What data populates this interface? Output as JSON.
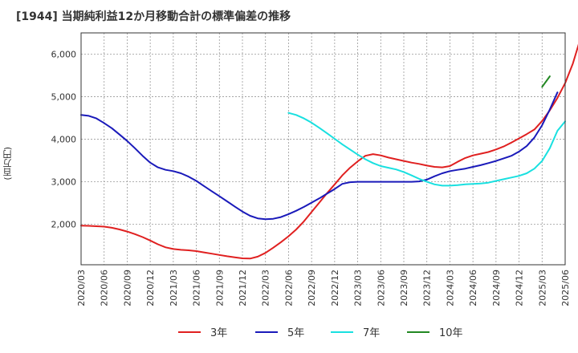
{
  "chart_data": {
    "type": "line",
    "title": "[1944]  当期純利益12か月移動合計の標準偏差の推移",
    "ylabel": "(百万円)",
    "xlabel": "",
    "ylim": [
      1050,
      6500
    ],
    "yticks": [
      2000,
      3000,
      4000,
      5000,
      6000
    ],
    "ytick_labels": [
      "2,000",
      "3,000",
      "4,000",
      "5,000",
      "6,000"
    ],
    "xticks": [
      "2020/03",
      "2020/06",
      "2020/09",
      "2020/12",
      "2021/03",
      "2021/06",
      "2021/09",
      "2021/12",
      "2022/03",
      "2022/06",
      "2022/09",
      "2022/12",
      "2023/03",
      "2023/06",
      "2023/09",
      "2023/12",
      "2024/03",
      "2024/06",
      "2024/09",
      "2024/12",
      "2025/03",
      "2025/06"
    ],
    "grid": true,
    "legend_position": "bottom",
    "x_start": "2020/03",
    "series": [
      {
        "name": "3年",
        "color": "#e02020",
        "start_index": 0,
        "values": [
          1970,
          1965,
          1955,
          1945,
          1920,
          1880,
          1830,
          1770,
          1700,
          1620,
          1530,
          1460,
          1420,
          1400,
          1390,
          1370,
          1340,
          1310,
          1280,
          1250,
          1225,
          1200,
          1195,
          1240,
          1330,
          1450,
          1580,
          1720,
          1880,
          2070,
          2290,
          2510,
          2730,
          2940,
          3150,
          3330,
          3480,
          3610,
          3650,
          3620,
          3570,
          3530,
          3490,
          3450,
          3420,
          3380,
          3350,
          3340,
          3370,
          3470,
          3560,
          3620,
          3660,
          3700,
          3760,
          3830,
          3920,
          4020,
          4120,
          4230,
          4430,
          4680,
          4970,
          5320,
          5780,
          6370
        ]
      },
      {
        "name": "5年",
        "color": "#1a1aba",
        "start_index": 0,
        "values": [
          4570,
          4550,
          4490,
          4380,
          4260,
          4110,
          3960,
          3790,
          3610,
          3450,
          3340,
          3280,
          3250,
          3200,
          3120,
          3020,
          2900,
          2780,
          2660,
          2540,
          2420,
          2300,
          2200,
          2140,
          2120,
          2130,
          2170,
          2240,
          2320,
          2410,
          2510,
          2610,
          2720,
          2830,
          2950,
          2990,
          3000,
          3000,
          3000,
          3000,
          3000,
          3000,
          3000,
          3000,
          3010,
          3050,
          3130,
          3200,
          3250,
          3280,
          3310,
          3350,
          3390,
          3440,
          3490,
          3550,
          3610,
          3710,
          3840,
          4040,
          4330,
          4700,
          5100
        ]
      },
      {
        "name": "7年",
        "color": "#19e0e0",
        "start_index": 27,
        "values": [
          4620,
          4570,
          4490,
          4390,
          4270,
          4140,
          4010,
          3880,
          3760,
          3640,
          3530,
          3440,
          3370,
          3330,
          3290,
          3230,
          3150,
          3070,
          3000,
          2940,
          2910,
          2910,
          2920,
          2940,
          2950,
          2960,
          2980,
          3020,
          3060,
          3100,
          3140,
          3200,
          3310,
          3490,
          3790,
          4200,
          4420
        ]
      },
      {
        "name": "10年",
        "color": "#228822",
        "start_index": 60,
        "values": [
          5230,
          5480
        ]
      }
    ]
  }
}
